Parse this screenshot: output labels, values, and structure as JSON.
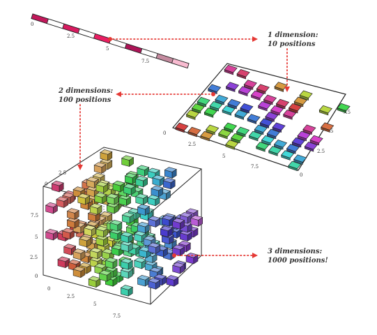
{
  "labels": {
    "one_d_line1": "1 dimension:",
    "one_d_line2": "10 positions",
    "two_d_line1": "2 dimensions:",
    "two_d_line2": "100 positions",
    "three_d_line1": "3 dimensions:",
    "three_d_line2": "1000 positions!"
  },
  "strip_ticks": [
    "0",
    "2.5",
    "5",
    "7.5"
  ],
  "plane_ticks": {
    "front": [
      "0",
      "2.5",
      "5",
      "7.5"
    ],
    "right": [
      "0",
      "2.5",
      "5",
      "7.5"
    ]
  },
  "cube_ticks": {
    "left": [
      "0",
      "2.5",
      "5",
      "7.5"
    ],
    "bottom": [
      "0",
      "2.5",
      "5",
      "7.5"
    ],
    "top": [
      "0",
      "2.5"
    ]
  },
  "colors": {
    "arrow": "#e53935",
    "strip_cells": [
      "#c2185b",
      "#ffffff",
      "#d81b60",
      "#ffffff",
      "#e91e63",
      "#ffffff",
      "#ad1457",
      "#ffffff",
      "#c48b9f",
      "#f8bbd0"
    ]
  }
}
